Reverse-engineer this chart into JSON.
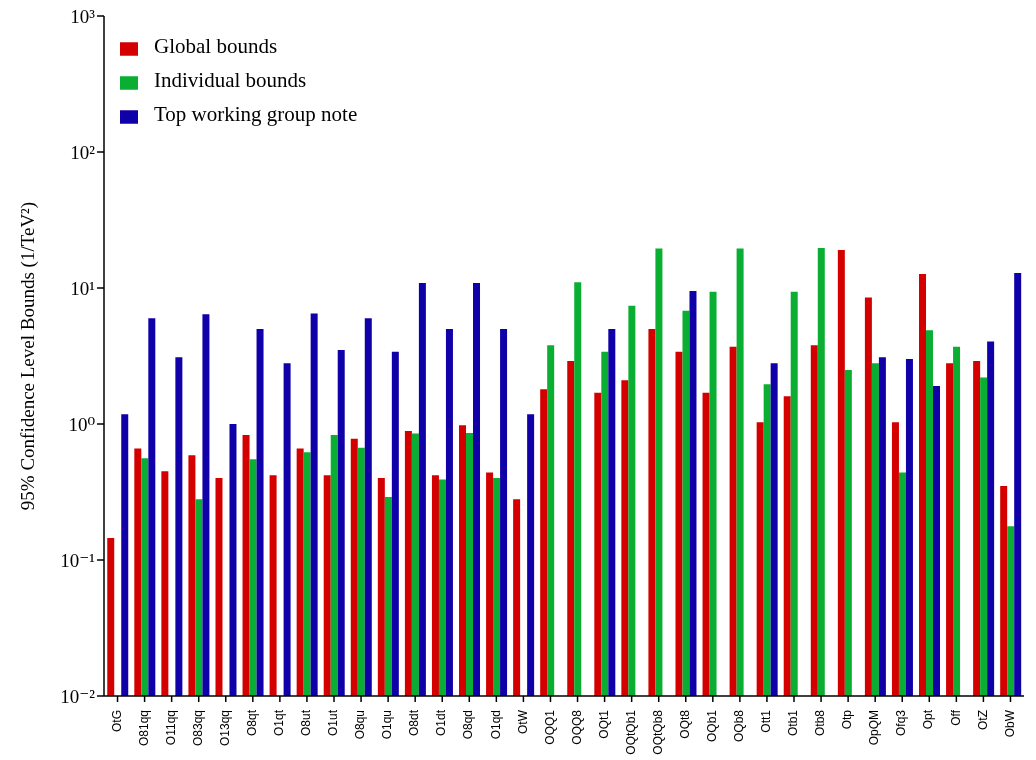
{
  "chart_data": {
    "type": "bar",
    "ylabel": "95% Confidence Level Bounds (1/TeV²)",
    "categories": [
      "OtG",
      "O81qq",
      "O11qq",
      "O83qq",
      "O13qq",
      "O8qt",
      "O1qt",
      "O8ut",
      "O1ut",
      "O8qu",
      "O1qu",
      "O8dt",
      "O1dt",
      "O8qd",
      "O1qd",
      "OtW",
      "OQQ1",
      "OQQ8",
      "OQt1",
      "OQtQb1",
      "OQtQb8",
      "OQt8",
      "OQb1",
      "OQb8",
      "Ott1",
      "Otb1",
      "Otb8",
      "Otp",
      "OpQM",
      "Ofq3",
      "Opt",
      "Off",
      "OtZ",
      "ObW"
    ],
    "series": [
      {
        "name": "Global bounds",
        "color": "#d40000",
        "values": [
          0.145,
          0.66,
          0.45,
          0.59,
          0.4,
          0.83,
          0.42,
          0.66,
          0.42,
          0.78,
          0.4,
          0.89,
          0.42,
          0.98,
          0.44,
          0.28,
          1.8,
          2.9,
          1.7,
          2.1,
          5.0,
          3.4,
          1.7,
          3.7,
          1.03,
          1.6,
          3.8,
          19,
          8.5,
          1.03,
          12.7,
          2.8,
          2.9,
          0.35
        ]
      },
      {
        "name": "Individual bounds",
        "color": "#0aae32",
        "values": [
          null,
          0.56,
          null,
          0.28,
          null,
          0.55,
          null,
          0.62,
          0.83,
          0.67,
          0.29,
          0.85,
          0.39,
          0.86,
          0.4,
          null,
          3.8,
          11,
          3.4,
          7.4,
          19.5,
          6.8,
          9.4,
          19.5,
          1.96,
          9.4,
          19.7,
          2.5,
          2.8,
          0.44,
          4.9,
          3.7,
          2.2,
          0.177
        ]
      },
      {
        "name": "Top working group note",
        "color": "#1000a8",
        "values": [
          1.18,
          6.0,
          3.1,
          6.4,
          1.0,
          5.0,
          2.8,
          6.5,
          3.5,
          6.0,
          3.4,
          10.9,
          5.0,
          10.9,
          5.0,
          1.18,
          null,
          null,
          5.0,
          null,
          null,
          9.5,
          null,
          null,
          2.8,
          null,
          null,
          null,
          3.1,
          3.0,
          1.9,
          null,
          4.05,
          12.9
        ]
      }
    ],
    "log": true,
    "ylim": [
      0.01,
      1000
    ],
    "yticks": [
      {
        "value": 0.01,
        "label": "10⁻²"
      },
      {
        "value": 0.1,
        "label": "10⁻¹"
      },
      {
        "value": 1,
        "label": "10⁰"
      },
      {
        "value": 10,
        "label": "10¹"
      },
      {
        "value": 100,
        "label": "10²"
      },
      {
        "value": 1000,
        "label": "10³"
      }
    ],
    "grid": false,
    "legend": "top left"
  }
}
